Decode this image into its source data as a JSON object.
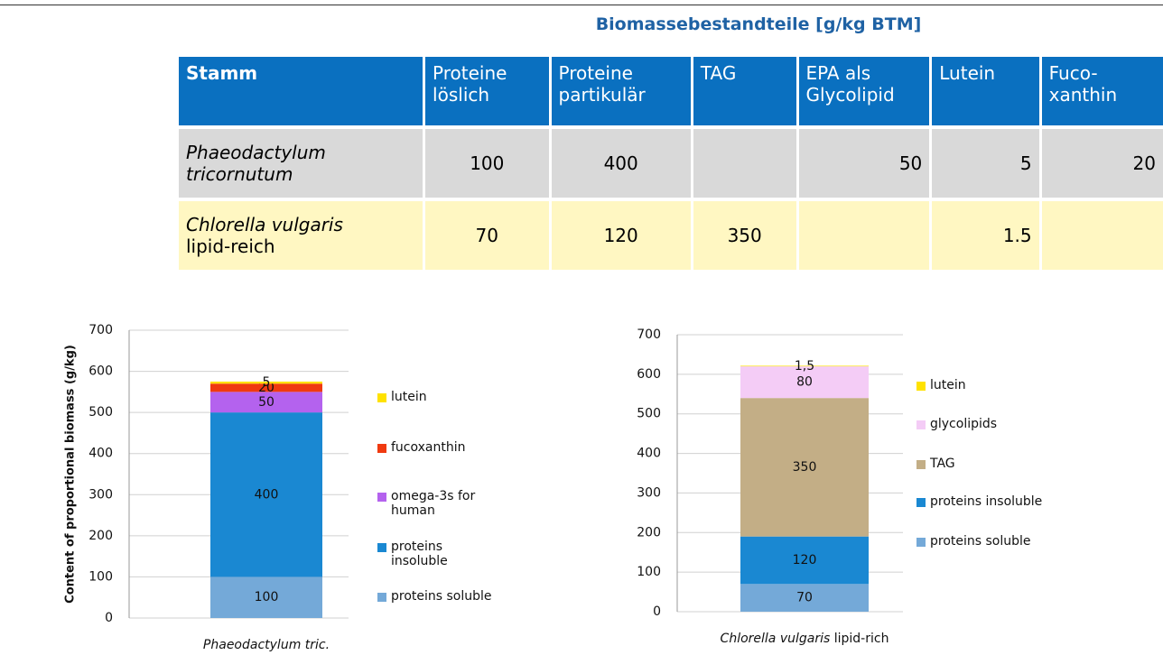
{
  "table": {
    "title": "Biomassebestandteile [g/kg BTM]",
    "header": [
      "Stamm",
      "Proteine löslich",
      "Proteine partikulär",
      "TAG",
      "EPA als Glycolipid",
      "Lutein",
      "Fuco-xanthin"
    ],
    "rows": [
      {
        "name": "Phaeodactylum tricornutum",
        "values": [
          100,
          400,
          null,
          50,
          5,
          20
        ]
      },
      {
        "name": "Chlorella vulgaris",
        "note": "lipid-reich",
        "values": [
          70,
          120,
          350,
          null,
          1.5,
          null
        ]
      }
    ]
  },
  "chart_data": [
    {
      "type": "stacked_bar",
      "ylabel": "Content of proportional biomass (g/kg)",
      "categories": [
        "Phaeodactylum tric."
      ],
      "ylim": [
        0,
        700
      ],
      "yticks": [
        0,
        100,
        200,
        300,
        400,
        500,
        600,
        700
      ],
      "grid": true,
      "series": [
        {
          "name": "proteins soluble",
          "color": "#74a9d8",
          "values": [
            100
          ]
        },
        {
          "name": "proteins insoluble",
          "color": "#1a88d2",
          "values": [
            400
          ]
        },
        {
          "name": "omega-3s for human",
          "color": "#b462ee",
          "values": [
            50
          ]
        },
        {
          "name": "fucoxanthin",
          "color": "#f03a10",
          "values": [
            20
          ]
        },
        {
          "name": "lutein",
          "color": "#ffe200",
          "values": [
            5
          ]
        }
      ]
    },
    {
      "type": "stacked_bar",
      "ylabel": "Content of proportional biomass (g/kg)",
      "categories": [
        "Chlorella vulgaris"
      ],
      "category_note": "lipid-rich",
      "ylim": [
        0,
        700
      ],
      "yticks": [
        0,
        100,
        200,
        300,
        400,
        500,
        600,
        700
      ],
      "grid": true,
      "series": [
        {
          "name": "proteins soluble",
          "color": "#74a9d8",
          "values": [
            70
          ]
        },
        {
          "name": "proteins insoluble",
          "color": "#1a88d2",
          "values": [
            120
          ]
        },
        {
          "name": "TAG",
          "color": "#c3ae86",
          "values": [
            350
          ]
        },
        {
          "name": "glycolipids",
          "color": "#f4ccf6",
          "values": [
            80
          ]
        },
        {
          "name": "lutein",
          "color": "#ffe200",
          "values": [
            1.5
          ],
          "value_labels": [
            "1,5"
          ]
        }
      ]
    }
  ]
}
